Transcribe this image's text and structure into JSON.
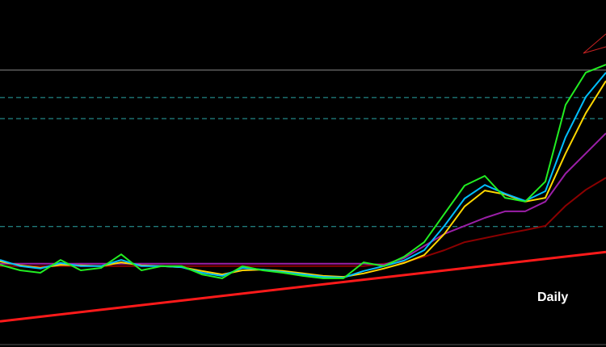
{
  "chart_data": {
    "type": "line",
    "annotation": "Daily",
    "xlim": [
      0,
      30
    ],
    "ylim": [
      0,
      100
    ],
    "x": [
      0,
      1,
      2,
      3,
      4,
      5,
      6,
      7,
      8,
      9,
      10,
      11,
      12,
      13,
      14,
      15,
      16,
      17,
      18,
      19,
      20,
      21,
      22,
      23,
      24,
      25,
      26,
      27,
      28,
      29,
      30
    ],
    "series": [
      {
        "color": "#8b0000",
        "values": [
          23.3,
          23.3,
          23.3,
          23.3,
          23.3,
          23.3,
          23.3,
          23.3,
          23.3,
          23.3,
          23.3,
          23.3,
          23.3,
          23.3,
          23.3,
          23.3,
          23.3,
          23.3,
          23.3,
          24.0,
          24.4,
          26.0,
          27.9,
          30.2,
          31.4,
          32.6,
          33.7,
          34.9,
          40.7,
          45.3,
          48.8
        ]
      },
      {
        "color": "#9b1fa8",
        "values": [
          24.0,
          24.0,
          24.0,
          24.0,
          24.0,
          24.0,
          24.0,
          24.0,
          24.0,
          24.0,
          24.0,
          24.0,
          24.0,
          24.0,
          24.0,
          24.0,
          24.0,
          24.0,
          24.0,
          23.7,
          25.6,
          29.1,
          32.6,
          34.9,
          37.2,
          39.1,
          39.1,
          41.9,
          50.0,
          55.8,
          61.6
        ]
      },
      {
        "color": "#ffd700",
        "values": [
          24.7,
          23.5,
          22.8,
          23.7,
          23.5,
          23.3,
          24.4,
          23.5,
          23.3,
          23.0,
          21.9,
          20.9,
          22.1,
          22.3,
          21.9,
          21.2,
          20.5,
          20.2,
          21.2,
          22.6,
          24.2,
          26.5,
          32.6,
          40.5,
          45.1,
          44.0,
          41.9,
          43.0,
          55.8,
          67.4,
          76.7
        ]
      },
      {
        "color": "#00bfff",
        "values": [
          25.1,
          23.3,
          22.6,
          24.2,
          23.3,
          23.3,
          25.1,
          23.3,
          23.3,
          23.0,
          21.4,
          20.5,
          22.8,
          22.3,
          21.6,
          20.9,
          20.2,
          20.0,
          21.9,
          23.3,
          24.9,
          27.9,
          34.9,
          42.8,
          46.7,
          44.2,
          42.1,
          44.9,
          60.5,
          72.1,
          79.1
        ]
      },
      {
        "color": "#22ee22",
        "values": [
          23.7,
          22.1,
          21.4,
          25.1,
          22.1,
          22.8,
          26.7,
          22.1,
          23.3,
          23.3,
          20.9,
          19.8,
          23.3,
          22.1,
          21.4,
          20.5,
          19.8,
          19.8,
          24.4,
          23.3,
          26.0,
          30.2,
          38.4,
          46.5,
          49.3,
          43.0,
          41.9,
          47.7,
          69.8,
          79.1,
          81.4
        ]
      }
    ],
    "trendline": {
      "color": "#ff1a1a",
      "x": [
        0,
        30
      ],
      "values": [
        7.4,
        27.4
      ]
    },
    "levels": [
      {
        "value": 79.8,
        "color": "#8a8a8a",
        "dashed": false
      },
      {
        "value": 71.9,
        "color": "#2aa6a6",
        "dashed": true
      },
      {
        "value": 65.8,
        "color": "#2aa6a6",
        "dashed": true
      },
      {
        "value": 34.7,
        "color": "#2aa6a6",
        "dashed": true
      }
    ]
  }
}
